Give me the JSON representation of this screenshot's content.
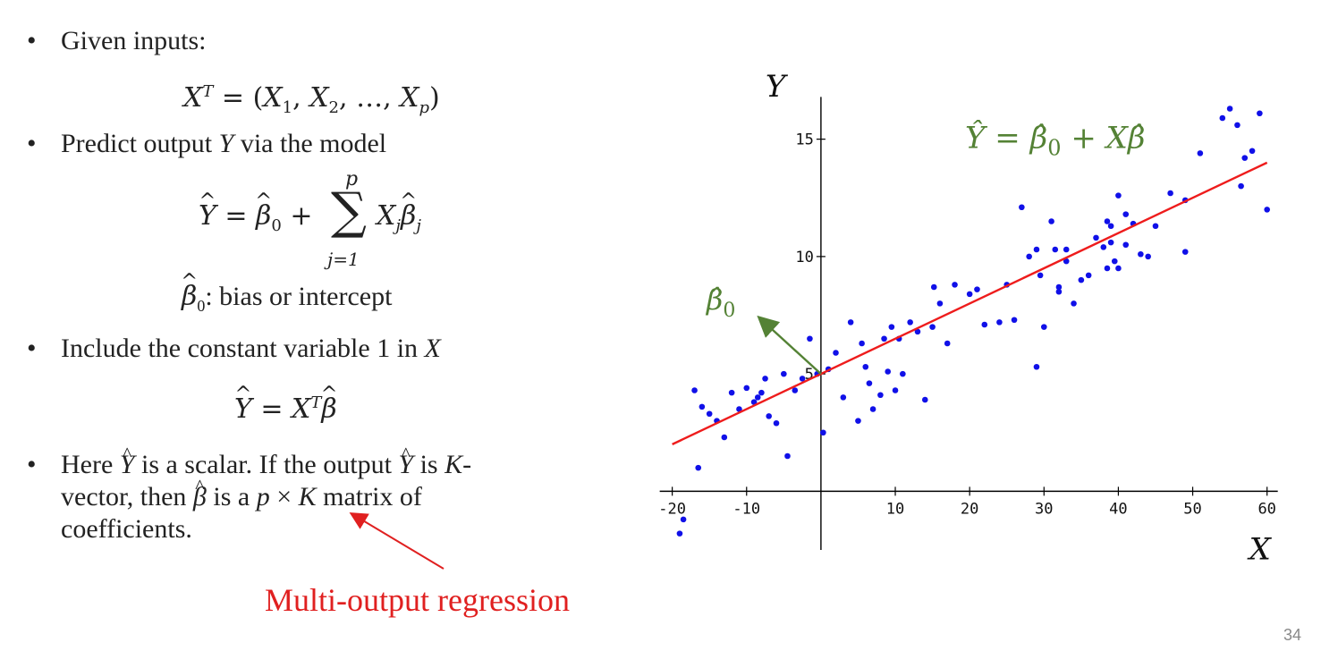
{
  "bullets": {
    "b1": "Given inputs:",
    "b2_pre": "Predict output ",
    "b2_var": "Y",
    "b2_post": " via the model",
    "b3_pre": "Include the constant variable 1 in ",
    "b3_var": "X",
    "b4_line1_pre": "Here ",
    "b4_line1_mid": " is a scalar. If the output ",
    "b4_line1_post": " is ",
    "b4_K": "K",
    "b4_line1_end": "-",
    "b4_line2_a": "vector, then ",
    "b4_line2_b": " is a ",
    "b4_p": "p",
    "b4_times": " × ",
    "b4_line2_c": " matrix of",
    "b4_line3": "coefficients.",
    "bullet_char": "•"
  },
  "equations": {
    "inputs_lhs": "X",
    "inputs_sup": "T",
    "inputs_rhs_pre": " = (",
    "x1": "X",
    "s1": "1",
    "x2": "X",
    "s2": "2",
    "dots": ", …, ",
    "xp": "X",
    "sp": "p",
    "close": ")",
    "comma": ", ",
    "model_y": "Y",
    "beta": "β",
    "zero": "0",
    "plus": " + ",
    "sum_symbol": "∑",
    "sum_top": "p",
    "sum_bottom": "j=1",
    "xj": "X",
    "j": "j",
    "equals": " = ",
    "bias_label": ": bias or intercept",
    "compact_x": "X",
    "compact_T": "T"
  },
  "annotation": {
    "multi_output": "Multi-output regression",
    "page_number": "34"
  },
  "colors": {
    "green": "#548235",
    "red_line": "#ee1c1c",
    "annotation_red": "#e02020",
    "points": "#1010e8",
    "axis": "#000000"
  },
  "chart_data": {
    "type": "scatter",
    "xlabel": "X",
    "ylabel": "Y",
    "xlim": [
      -22,
      61
    ],
    "ylim": [
      -2.5,
      17.5
    ],
    "xticks": [
      -20,
      -10,
      10,
      20,
      30,
      40,
      50,
      60
    ],
    "yticks": [
      5,
      10,
      15
    ],
    "equation_label": "Ŷ = β̂0 + Xβ̂",
    "intercept_label": "β̂0",
    "regression_line": {
      "intercept": 5.0,
      "slope": 0.15,
      "x_range": [
        -20,
        60
      ]
    },
    "x": [
      -19,
      -18.5,
      -17,
      -16.5,
      -16,
      -15,
      -14,
      -13,
      -12,
      -11,
      -10,
      -9,
      -8.5,
      -8,
      -7.5,
      -7,
      -6,
      -5,
      -4.5,
      -3.5,
      -2.5,
      -1.5,
      -0.5,
      0.3,
      1,
      2,
      3,
      4,
      5,
      5.5,
      6,
      6.5,
      7,
      8,
      8.5,
      9,
      9.5,
      10,
      10.5,
      11,
      12,
      13,
      14,
      15,
      15.2,
      16,
      17,
      18,
      20,
      21,
      22,
      24,
      25,
      26,
      27,
      28,
      29,
      29,
      29.5,
      30,
      31,
      31.5,
      32,
      32,
      33,
      33,
      34,
      35,
      36,
      37,
      38,
      38.5,
      38.5,
      39,
      39,
      39.5,
      40,
      40,
      41,
      41,
      42,
      43,
      44,
      45,
      47,
      49,
      49,
      51,
      54,
      55,
      56,
      56.5,
      57,
      58,
      59,
      60
    ],
    "y": [
      -1.8,
      -1.2,
      4.3,
      1.0,
      3.6,
      3.3,
      3.0,
      2.3,
      4.2,
      3.5,
      4.4,
      3.8,
      4.0,
      4.2,
      4.8,
      3.2,
      2.9,
      5.0,
      1.5,
      4.3,
      4.8,
      6.5,
      5.0,
      2.5,
      5.2,
      5.9,
      4.0,
      7.2,
      3.0,
      6.3,
      5.3,
      4.6,
      3.5,
      4.1,
      6.5,
      5.1,
      7.0,
      4.3,
      6.5,
      5.0,
      7.2,
      6.8,
      3.9,
      7.0,
      8.7,
      8.0,
      6.3,
      8.8,
      8.4,
      8.6,
      7.1,
      7.2,
      8.8,
      7.3,
      12.1,
      10.0,
      10.3,
      5.3,
      9.2,
      7.0,
      11.5,
      10.3,
      8.7,
      8.5,
      9.8,
      10.3,
      8.0,
      9.0,
      9.2,
      10.8,
      10.4,
      11.5,
      9.5,
      11.3,
      10.6,
      9.8,
      9.5,
      12.6,
      10.5,
      11.8,
      11.4,
      10.1,
      10.0,
      11.3,
      12.7,
      12.4,
      10.2,
      14.4,
      15.9,
      16.3,
      15.6,
      13.0,
      14.2,
      14.5,
      16.1,
      12.0
    ]
  }
}
